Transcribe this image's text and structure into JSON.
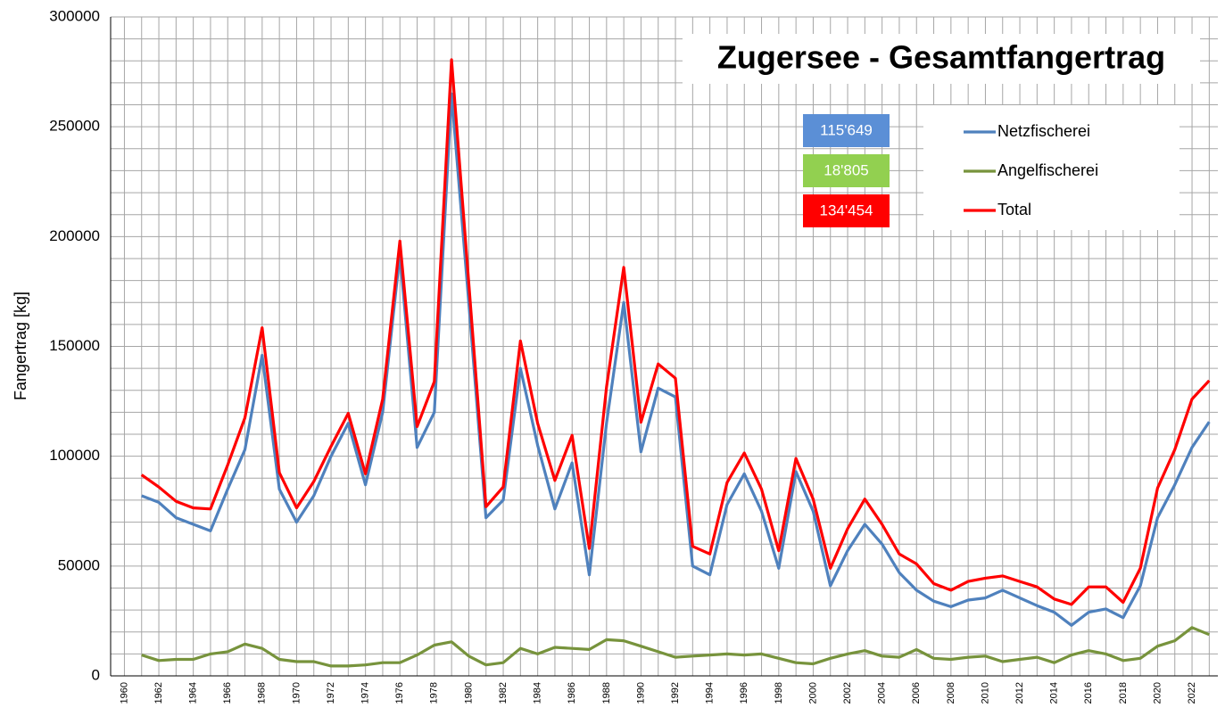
{
  "chart_data": {
    "type": "line",
    "title": "Zugersee - Gesamtfangertrag",
    "y_label": "Fangertrag [kg]",
    "x": [
      1961,
      1962,
      1963,
      1964,
      1965,
      1966,
      1967,
      1968,
      1969,
      1970,
      1971,
      1972,
      1973,
      1974,
      1975,
      1976,
      1977,
      1978,
      1979,
      1980,
      1981,
      1982,
      1983,
      1984,
      1985,
      1986,
      1987,
      1988,
      1989,
      1990,
      1991,
      1992,
      1993,
      1994,
      1995,
      1996,
      1997,
      1998,
      1999,
      2000,
      2001,
      2002,
      2003,
      2004,
      2005,
      2006,
      2007,
      2008,
      2009,
      2010,
      2011,
      2012,
      2013,
      2014,
      2015,
      2016,
      2017,
      2018,
      2019,
      2020,
      2021,
      2022,
      2023
    ],
    "series": [
      {
        "name": "Netzfischerei",
        "color": "#4f81bd",
        "value_label": "115'649",
        "label_color": "#5b8fd6",
        "values": [
          82000,
          79000,
          72000,
          69000,
          66000,
          85000,
          103000,
          146000,
          85000,
          70000,
          82000,
          100000,
          115000,
          87000,
          120000,
          192000,
          104000,
          120000,
          265000,
          170000,
          72000,
          80000,
          140000,
          105000,
          76000,
          97000,
          46000,
          115000,
          170000,
          102000,
          131000,
          127000,
          50000,
          46000,
          78000,
          92000,
          75000,
          49000,
          93000,
          75000,
          41000,
          57000,
          69000,
          60000,
          47000,
          39000,
          34000,
          31500,
          34500,
          35500,
          39000,
          35500,
          32000,
          29000,
          23000,
          29000,
          30500,
          26500,
          41000,
          72000,
          87000,
          104000,
          115649
        ]
      },
      {
        "name": "Angelfischerei",
        "color": "#77933c",
        "value_label": "18'805",
        "label_color": "#92d050",
        "values": [
          9500,
          7000,
          7500,
          7500,
          10000,
          11000,
          14500,
          12500,
          7500,
          6500,
          6500,
          4500,
          4500,
          5000,
          6000,
          6000,
          9500,
          14000,
          15500,
          9000,
          5000,
          6000,
          12500,
          10000,
          13000,
          12500,
          12000,
          16500,
          16000,
          13500,
          11000,
          8500,
          9000,
          9500,
          10000,
          9500,
          10000,
          8000,
          6000,
          5500,
          8000,
          10000,
          11500,
          9000,
          8500,
          12000,
          8000,
          7500,
          8500,
          9000,
          6500,
          7500,
          8500,
          6000,
          9500,
          11500,
          10000,
          7000,
          8000,
          13500,
          16000,
          22000,
          18805
        ]
      },
      {
        "name": "Total",
        "color": "#ff0000",
        "value_label": "134'454",
        "label_color": "#ff0000",
        "values": [
          91500,
          86000,
          79500,
          76500,
          76000,
          96000,
          117500,
          158500,
          92500,
          76500,
          88500,
          104500,
          119500,
          92000,
          126000,
          198000,
          113500,
          134000,
          280500,
          179000,
          77000,
          86000,
          152500,
          115000,
          89000,
          109500,
          58000,
          131500,
          186000,
          115500,
          142000,
          135500,
          59000,
          55500,
          88000,
          101500,
          85000,
          57000,
          99000,
          80500,
          49000,
          67000,
          80500,
          69000,
          55500,
          51000,
          42000,
          39000,
          43000,
          44500,
          45500,
          43000,
          40500,
          35000,
          32500,
          40500,
          40500,
          33500,
          49000,
          85500,
          103000,
          126000,
          134454
        ]
      }
    ],
    "xlim": [
      1959.2,
      2023.5
    ],
    "xticks": [
      1960,
      1962,
      1964,
      1966,
      1968,
      1970,
      1972,
      1974,
      1976,
      1978,
      1980,
      1982,
      1984,
      1986,
      1988,
      1990,
      1992,
      1994,
      1996,
      1998,
      2000,
      2002,
      2004,
      2006,
      2008,
      2010,
      2012,
      2014,
      2016,
      2018,
      2020,
      2022
    ],
    "xminor_ticks": [
      1961,
      1963,
      1965,
      1967,
      1969,
      1971,
      1973,
      1975,
      1977,
      1979,
      1981,
      1983,
      1985,
      1987,
      1989,
      1991,
      1993,
      1995,
      1997,
      1999,
      2001,
      2003,
      2005,
      2007,
      2009,
      2011,
      2013,
      2015,
      2017,
      2019,
      2021,
      2023
    ],
    "ylim": [
      0,
      300000
    ],
    "yticks": [
      0,
      50000,
      100000,
      150000,
      200000,
      250000,
      300000
    ],
    "yminor_ticks": [
      10000,
      20000,
      30000,
      40000,
      60000,
      70000,
      80000,
      90000,
      110000,
      120000,
      130000,
      140000,
      160000,
      170000,
      180000,
      190000,
      210000,
      220000,
      230000,
      240000,
      260000,
      270000,
      280000,
      290000
    ],
    "grid": true,
    "legend": "upper right"
  }
}
